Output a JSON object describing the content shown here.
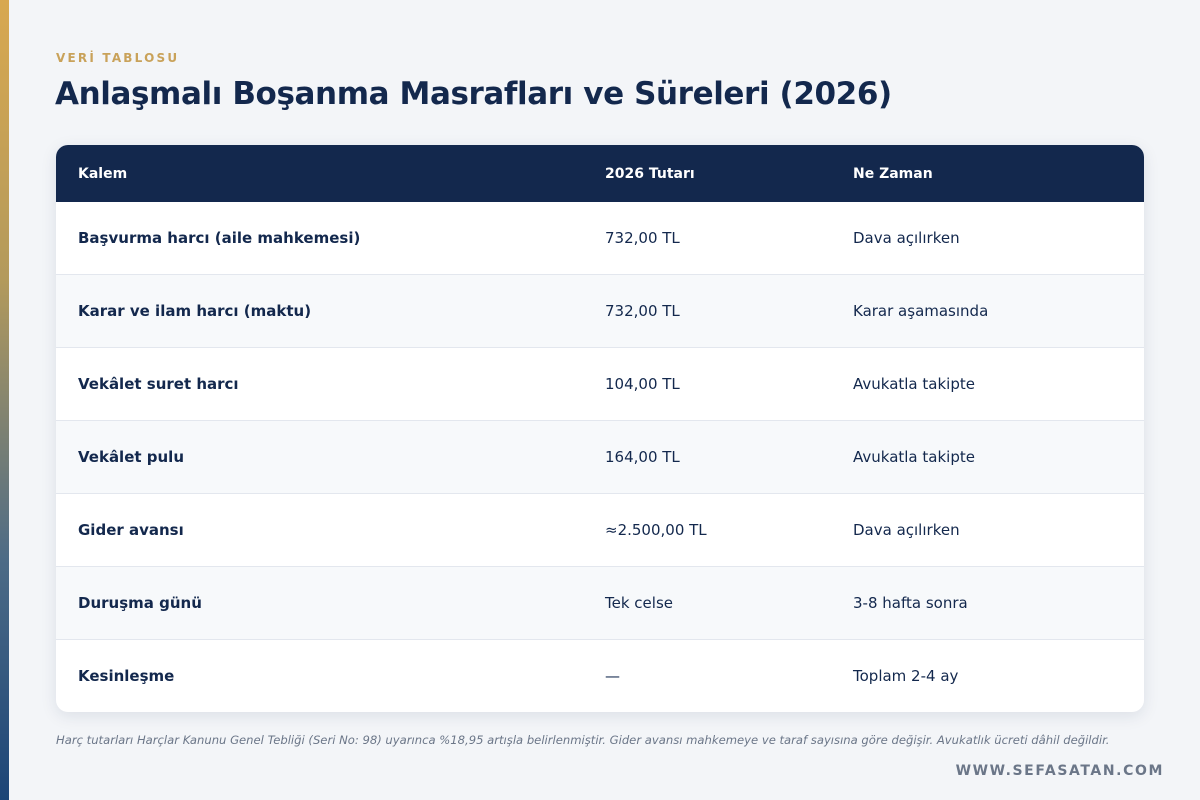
{
  "header": {
    "eyebrow": "VERİ TABLOSU",
    "title": "Anlaşmalı Boşanma Masrafları ve Süreleri (2026)"
  },
  "table": {
    "columns": [
      "Kalem",
      "2026 Tutarı",
      "Ne Zaman"
    ],
    "rows": [
      {
        "item": "Başvurma harcı (aile mahkemesi)",
        "amount": "732,00 TL",
        "when": "Dava açılırken"
      },
      {
        "item": "Karar ve ilam harcı (maktu)",
        "amount": "732,00 TL",
        "when": "Karar aşamasında"
      },
      {
        "item": "Vekâlet suret harcı",
        "amount": "104,00 TL",
        "when": "Avukatla takipte"
      },
      {
        "item": "Vekâlet pulu",
        "amount": "164,00 TL",
        "when": "Avukatla takipte"
      },
      {
        "item": "Gider avansı",
        "amount": "≈2.500,00 TL",
        "when": "Dava açılırken"
      },
      {
        "item": "Duruşma günü",
        "amount": "Tek celse",
        "when": "3-8 hafta sonra"
      },
      {
        "item": "Kesinleşme",
        "amount": "—",
        "when": "Toplam 2-4 ay"
      }
    ]
  },
  "footnote": "Harç tutarları Harçlar Kanunu Genel Tebliği (Seri No: 98) uyarınca %18,95 artışla belirlenmiştir. Gider avansı mahkemeye ve taraf sayısına göre değişir. Avukatlık ücreti dâhil değildir.",
  "footer": {
    "site": "WWW.SEFASATAN.COM"
  },
  "colors": {
    "navy": "#13284d",
    "gold": "#c9a25a",
    "background": "#f3f5f8",
    "row_alt": "#f7f9fb"
  }
}
